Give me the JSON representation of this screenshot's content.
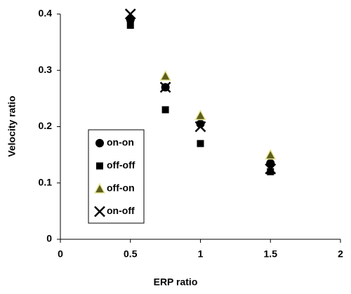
{
  "chart_data": {
    "type": "scatter",
    "x_label": "ERP ratio",
    "y_label": "Velocity ratio",
    "xlim": [
      0,
      2
    ],
    "xticks": [
      0,
      0.5,
      1,
      1.5,
      2
    ],
    "ylim": [
      0,
      0.4
    ],
    "yticks": [
      0,
      0.1,
      0.2,
      0.3,
      0.4
    ],
    "grid": false,
    "series": [
      {
        "name": "on-on",
        "marker": "circle",
        "color": "#000000",
        "x": [
          0.5,
          0.75,
          1,
          1.5
        ],
        "values": [
          0.39,
          0.27,
          0.205,
          0.135
        ]
      },
      {
        "name": "off-off",
        "marker": "square",
        "color": "#000000",
        "x": [
          0.5,
          0.75,
          1,
          1.5
        ],
        "values": [
          0.38,
          0.23,
          0.17,
          0.12
        ]
      },
      {
        "name": "off-on",
        "marker": "triangle",
        "color": "#5e5e1c",
        "x": [
          0.75,
          1,
          1.5
        ],
        "values": [
          0.29,
          0.22,
          0.15
        ]
      },
      {
        "name": "on-off",
        "marker": "cross",
        "color": "#000000",
        "x": [
          0.5,
          0.75,
          1,
          1.5
        ],
        "values": [
          0.4,
          0.27,
          0.2,
          0.125
        ]
      }
    ]
  }
}
